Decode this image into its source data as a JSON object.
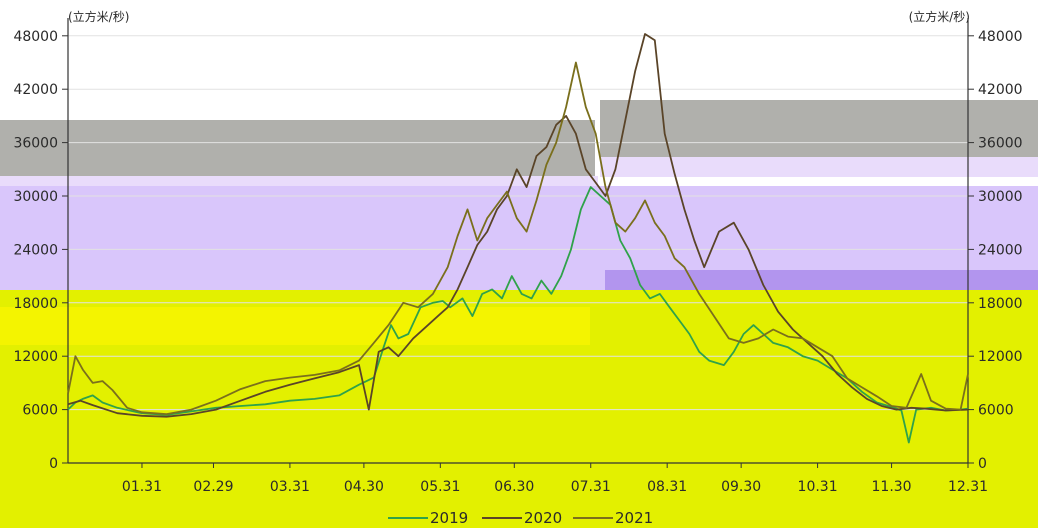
{
  "chart_data": {
    "type": "line",
    "unit_left": "(立方米/秒)",
    "unit_right": "(立方米/秒)",
    "ylim": [
      0,
      50000
    ],
    "yticks": [
      0,
      6000,
      12000,
      18000,
      24000,
      30000,
      36000,
      42000,
      48000
    ],
    "xlim": [
      0,
      365
    ],
    "xticks": [
      {
        "label": "01.31",
        "day": 30
      },
      {
        "label": "02.29",
        "day": 59
      },
      {
        "label": "03.31",
        "day": 90
      },
      {
        "label": "04.30",
        "day": 120
      },
      {
        "label": "05.31",
        "day": 151
      },
      {
        "label": "06.30",
        "day": 181
      },
      {
        "label": "07.31",
        "day": 212
      },
      {
        "label": "08.31",
        "day": 243
      },
      {
        "label": "09.30",
        "day": 273
      },
      {
        "label": "10.31",
        "day": 304
      },
      {
        "label": "11.30",
        "day": 334
      },
      {
        "label": "12.31",
        "day": 365
      }
    ],
    "series": [
      {
        "name": "2019",
        "color": "#2fa24a",
        "points": [
          [
            0,
            6000
          ],
          [
            3,
            6800
          ],
          [
            6,
            7200
          ],
          [
            10,
            7600
          ],
          [
            14,
            6800
          ],
          [
            20,
            6200
          ],
          [
            30,
            5600
          ],
          [
            40,
            5400
          ],
          [
            50,
            5800
          ],
          [
            60,
            6200
          ],
          [
            70,
            6400
          ],
          [
            80,
            6600
          ],
          [
            90,
            7000
          ],
          [
            100,
            7200
          ],
          [
            110,
            7600
          ],
          [
            118,
            8800
          ],
          [
            124,
            9600
          ],
          [
            128,
            13000
          ],
          [
            131,
            15500
          ],
          [
            134,
            14000
          ],
          [
            138,
            14500
          ],
          [
            143,
            17500
          ],
          [
            148,
            18000
          ],
          [
            152,
            18200
          ],
          [
            155,
            17500
          ],
          [
            160,
            18500
          ],
          [
            164,
            16500
          ],
          [
            168,
            19000
          ],
          [
            172,
            19500
          ],
          [
            176,
            18500
          ],
          [
            180,
            21000
          ],
          [
            184,
            19000
          ],
          [
            188,
            18500
          ],
          [
            192,
            20500
          ],
          [
            196,
            19000
          ],
          [
            200,
            21000
          ],
          [
            204,
            24000
          ],
          [
            208,
            28500
          ],
          [
            212,
            31000
          ],
          [
            216,
            30000
          ],
          [
            220,
            29000
          ],
          [
            224,
            25000
          ],
          [
            228,
            23000
          ],
          [
            232,
            20000
          ],
          [
            236,
            18500
          ],
          [
            240,
            19000
          ],
          [
            244,
            17500
          ],
          [
            248,
            16000
          ],
          [
            252,
            14500
          ],
          [
            256,
            12500
          ],
          [
            260,
            11500
          ],
          [
            266,
            11000
          ],
          [
            270,
            12500
          ],
          [
            274,
            14500
          ],
          [
            278,
            15500
          ],
          [
            282,
            14500
          ],
          [
            286,
            13500
          ],
          [
            292,
            13000
          ],
          [
            298,
            12000
          ],
          [
            304,
            11500
          ],
          [
            310,
            10500
          ],
          [
            316,
            9500
          ],
          [
            322,
            8000
          ],
          [
            328,
            6800
          ],
          [
            334,
            6300
          ],
          [
            338,
            5900
          ],
          [
            341,
            2300
          ],
          [
            344,
            6000
          ],
          [
            350,
            6200
          ],
          [
            356,
            5900
          ],
          [
            362,
            6000
          ],
          [
            365,
            6100
          ]
        ]
      },
      {
        "name": "2020",
        "color": "#5a4428",
        "points": [
          [
            0,
            6600
          ],
          [
            5,
            7000
          ],
          [
            10,
            6500
          ],
          [
            20,
            5600
          ],
          [
            30,
            5300
          ],
          [
            40,
            5200
          ],
          [
            50,
            5500
          ],
          [
            60,
            6000
          ],
          [
            70,
            7000
          ],
          [
            80,
            8000
          ],
          [
            90,
            8800
          ],
          [
            100,
            9500
          ],
          [
            110,
            10200
          ],
          [
            118,
            11000
          ],
          [
            122,
            6000
          ],
          [
            126,
            12500
          ],
          [
            130,
            13000
          ],
          [
            134,
            12000
          ],
          [
            140,
            14000
          ],
          [
            146,
            15500
          ],
          [
            150,
            16500
          ],
          [
            154,
            17500
          ],
          [
            158,
            19500
          ],
          [
            162,
            22000
          ],
          [
            166,
            24500
          ],
          [
            170,
            26000
          ],
          [
            174,
            28500
          ],
          [
            178,
            30000
          ],
          [
            182,
            33000
          ],
          [
            186,
            31000
          ],
          [
            190,
            34500
          ],
          [
            194,
            35500
          ],
          [
            198,
            38000
          ],
          [
            202,
            39000
          ],
          [
            206,
            37000
          ],
          [
            210,
            33000
          ],
          [
            214,
            31500
          ],
          [
            218,
            30000
          ],
          [
            222,
            33000
          ],
          [
            226,
            38500
          ],
          [
            230,
            44000
          ],
          [
            234,
            48200
          ],
          [
            238,
            47500
          ],
          [
            242,
            37000
          ],
          [
            246,
            32500
          ],
          [
            250,
            28500
          ],
          [
            254,
            25000
          ],
          [
            258,
            22000
          ],
          [
            264,
            26000
          ],
          [
            270,
            27000
          ],
          [
            276,
            24000
          ],
          [
            282,
            20000
          ],
          [
            288,
            17000
          ],
          [
            294,
            15000
          ],
          [
            300,
            13500
          ],
          [
            306,
            12000
          ],
          [
            312,
            10000
          ],
          [
            318,
            8500
          ],
          [
            324,
            7200
          ],
          [
            330,
            6400
          ],
          [
            336,
            6000
          ],
          [
            342,
            6200
          ],
          [
            348,
            6100
          ],
          [
            356,
            5900
          ],
          [
            365,
            6000
          ]
        ]
      },
      {
        "name": "2021",
        "color": "#7a6f1c",
        "points": [
          [
            0,
            7800
          ],
          [
            3,
            12000
          ],
          [
            6,
            10500
          ],
          [
            10,
            9000
          ],
          [
            14,
            9200
          ],
          [
            18,
            8200
          ],
          [
            24,
            6200
          ],
          [
            30,
            5700
          ],
          [
            40,
            5500
          ],
          [
            50,
            6000
          ],
          [
            60,
            7000
          ],
          [
            70,
            8300
          ],
          [
            80,
            9200
          ],
          [
            90,
            9600
          ],
          [
            100,
            9900
          ],
          [
            110,
            10400
          ],
          [
            118,
            11500
          ],
          [
            124,
            13500
          ],
          [
            130,
            15500
          ],
          [
            136,
            18000
          ],
          [
            142,
            17500
          ],
          [
            148,
            19000
          ],
          [
            154,
            22000
          ],
          [
            158,
            25500
          ],
          [
            162,
            28500
          ],
          [
            166,
            25000
          ],
          [
            170,
            27500
          ],
          [
            174,
            29000
          ],
          [
            178,
            30500
          ],
          [
            182,
            27500
          ],
          [
            186,
            26000
          ],
          [
            190,
            29500
          ],
          [
            194,
            33500
          ],
          [
            198,
            36000
          ],
          [
            202,
            40000
          ],
          [
            206,
            45000
          ],
          [
            210,
            40000
          ],
          [
            214,
            37000
          ],
          [
            218,
            31000
          ],
          [
            222,
            27000
          ],
          [
            226,
            26000
          ],
          [
            230,
            27500
          ],
          [
            234,
            29500
          ],
          [
            238,
            27000
          ],
          [
            242,
            25500
          ],
          [
            246,
            23000
          ],
          [
            250,
            22000
          ],
          [
            256,
            19000
          ],
          [
            262,
            16500
          ],
          [
            268,
            14000
          ],
          [
            274,
            13500
          ],
          [
            280,
            14000
          ],
          [
            286,
            15000
          ],
          [
            292,
            14200
          ],
          [
            298,
            14000
          ],
          [
            304,
            13000
          ],
          [
            310,
            12000
          ],
          [
            316,
            9500
          ],
          [
            322,
            8500
          ],
          [
            328,
            7500
          ],
          [
            334,
            6400
          ],
          [
            340,
            6200
          ],
          [
            346,
            10000
          ],
          [
            350,
            7000
          ],
          [
            356,
            6100
          ],
          [
            362,
            6000
          ],
          [
            365,
            10000
          ]
        ]
      }
    ]
  }
}
